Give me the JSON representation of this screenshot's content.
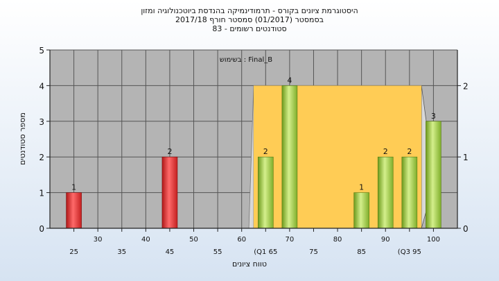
{
  "header": {
    "title_line1": "היסטוגרמת ציונים בקורס - תרמודינמיקה בהנדסת ביוטכנולוגיה ומזון",
    "title_line2": "בסמסטר  (01/2017)  סמסטר חורף 2017/18",
    "title_line3": "83 - סטודנטים רשומים"
  },
  "chart_data": {
    "type": "bar",
    "title": "היסטוגרמת ציונים בקורס - תרמודינמיקה בהנדסת ביוטכנולוגיה ומזון",
    "xlabel": "טווח ציונים",
    "ylabel": "מספר סטודנטים",
    "annotation": "בשימוש : Final_B",
    "xlim": [
      20,
      105
    ],
    "ylim": [
      0,
      5
    ],
    "y_ticks": [
      0,
      1,
      2,
      3,
      4,
      5
    ],
    "y2_ticks": [
      0,
      1,
      2
    ],
    "grid": true,
    "x_tick_labels": [
      {
        "x": 25,
        "label": "25",
        "row": 2
      },
      {
        "x": 30,
        "label": "30",
        "row": 1
      },
      {
        "x": 35,
        "label": "35",
        "row": 2
      },
      {
        "x": 40,
        "label": "40",
        "row": 1
      },
      {
        "x": 45,
        "label": "45",
        "row": 2
      },
      {
        "x": 50,
        "label": "50",
        "row": 1
      },
      {
        "x": 55,
        "label": "55",
        "row": 2
      },
      {
        "x": 60,
        "label": "60",
        "row": 1
      },
      {
        "x": 65,
        "label": "(Q1 65",
        "row": 2
      },
      {
        "x": 70,
        "label": "70",
        "row": 1
      },
      {
        "x": 75,
        "label": "75",
        "row": 2
      },
      {
        "x": 80,
        "label": "80",
        "row": 1
      },
      {
        "x": 85,
        "label": "85",
        "row": 2
      },
      {
        "x": 90,
        "label": "90",
        "row": 1
      },
      {
        "x": 95,
        "label": "(Q3 95",
        "row": 2
      },
      {
        "x": 100,
        "label": "100",
        "row": 1
      }
    ],
    "bars": [
      {
        "x": 25,
        "value": 1,
        "color": "red"
      },
      {
        "x": 45,
        "value": 2,
        "color": "red"
      },
      {
        "x": 65,
        "value": 2,
        "color": "green"
      },
      {
        "x": 70,
        "value": 4,
        "color": "green"
      },
      {
        "x": 85,
        "value": 1,
        "color": "green"
      },
      {
        "x": 90,
        "value": 2,
        "color": "green"
      },
      {
        "x": 95,
        "value": 2,
        "color": "green"
      },
      {
        "x": 100,
        "value": 3,
        "color": "green"
      }
    ],
    "box": {
      "q1": 65,
      "q3": 95,
      "height": 4
    },
    "colors": {
      "plot_bg": "#b4b4b4",
      "grid": "#555555",
      "box_fill": "#ffcc55",
      "box_side": "#d8d8d8",
      "red_dark": "#b01818",
      "red_light": "#ff6a6a",
      "green_dark": "#6d9a1c",
      "green_light": "#d4ef8c"
    }
  }
}
